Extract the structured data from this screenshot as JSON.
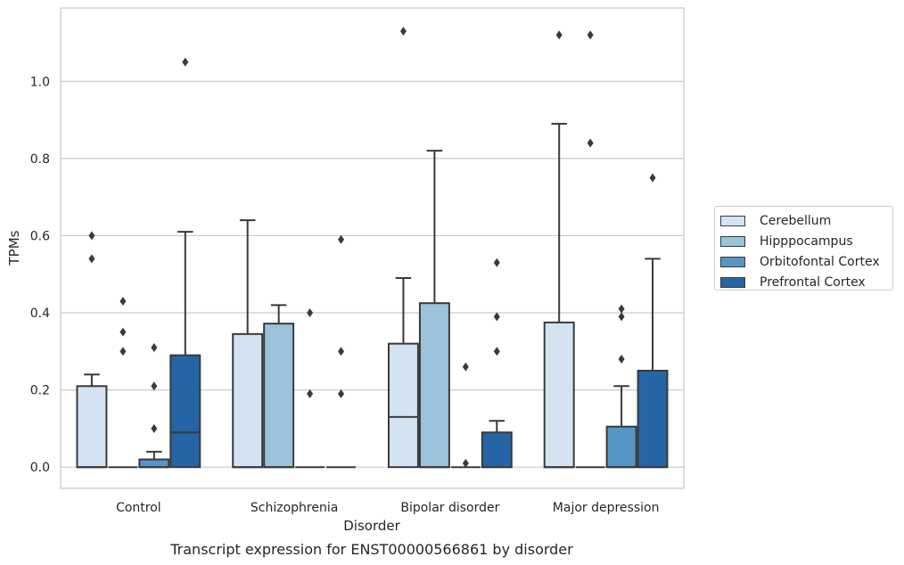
{
  "chart_data": {
    "type": "box",
    "title": "Transcript expression for ENST00000566861 by disorder",
    "xlabel": "Disorder",
    "ylabel": "TPMs",
    "ylim": [
      -0.055,
      1.19
    ],
    "yticks": [
      "0.0",
      "0.2",
      "0.4",
      "0.6",
      "0.8",
      "1.0"
    ],
    "grid": "horizontal",
    "legend_position": "right",
    "categories": [
      "Control",
      "Schizophrenia",
      "Bipolar disorder",
      "Major depression"
    ],
    "series": [
      {
        "name": "Cerebellum",
        "color": "#d4e3f1",
        "boxes": [
          {
            "q1": 0.0,
            "median": 0.0,
            "q3": 0.21,
            "whisker_low": 0.0,
            "whisker_high": 0.24,
            "outliers": [
              0.54,
              0.6
            ]
          },
          {
            "q1": 0.0,
            "median": 0.0,
            "q3": 0.345,
            "whisker_low": 0.0,
            "whisker_high": 0.64,
            "outliers": []
          },
          {
            "q1": 0.0,
            "median": 0.13,
            "q3": 0.32,
            "whisker_low": 0.0,
            "whisker_high": 0.49,
            "outliers": [
              1.13
            ]
          },
          {
            "q1": 0.0,
            "median": 0.0,
            "q3": 0.375,
            "whisker_low": 0.0,
            "whisker_high": 0.89,
            "outliers": [
              1.12
            ]
          }
        ]
      },
      {
        "name": "Hipppocampus",
        "color": "#9ac2db",
        "boxes": [
          {
            "q1": 0.0,
            "median": 0.0,
            "q3": 0.0,
            "whisker_low": 0.0,
            "whisker_high": 0.0,
            "outliers": [
              0.3,
              0.35,
              0.43
            ]
          },
          {
            "q1": 0.0,
            "median": 0.0,
            "q3": 0.372,
            "whisker_low": 0.0,
            "whisker_high": 0.42,
            "outliers": []
          },
          {
            "q1": 0.0,
            "median": 0.0,
            "q3": 0.425,
            "whisker_low": 0.0,
            "whisker_high": 0.82,
            "outliers": []
          },
          {
            "q1": 0.0,
            "median": 0.0,
            "q3": 0.0,
            "whisker_low": 0.0,
            "whisker_high": 0.0,
            "outliers": [
              0.84,
              1.12
            ]
          }
        ]
      },
      {
        "name": "Orbitofontal Cortex",
        "color": "#5596c6",
        "boxes": [
          {
            "q1": 0.0,
            "median": 0.0,
            "q3": 0.02,
            "whisker_low": 0.0,
            "whisker_high": 0.04,
            "outliers": [
              0.1,
              0.21,
              0.31
            ]
          },
          {
            "q1": 0.0,
            "median": 0.0,
            "q3": 0.0,
            "whisker_low": 0.0,
            "whisker_high": 0.0,
            "outliers": [
              0.19,
              0.4
            ]
          },
          {
            "q1": 0.0,
            "median": 0.0,
            "q3": 0.0,
            "whisker_low": 0.0,
            "whisker_high": 0.0,
            "outliers": [
              0.01,
              0.26
            ]
          },
          {
            "q1": 0.0,
            "median": 0.0,
            "q3": 0.105,
            "whisker_low": 0.0,
            "whisker_high": 0.21,
            "outliers": [
              0.28,
              0.39,
              0.41
            ]
          }
        ]
      },
      {
        "name": "Prefrontal Cortex",
        "color": "#2565a6",
        "boxes": [
          {
            "q1": 0.0,
            "median": 0.09,
            "q3": 0.29,
            "whisker_low": 0.0,
            "whisker_high": 0.61,
            "outliers": [
              1.05
            ]
          },
          {
            "q1": 0.0,
            "median": 0.0,
            "q3": 0.0,
            "whisker_low": 0.0,
            "whisker_high": 0.0,
            "outliers": [
              0.19,
              0.3,
              0.59
            ]
          },
          {
            "q1": 0.0,
            "median": 0.0,
            "q3": 0.09,
            "whisker_low": 0.0,
            "whisker_high": 0.12,
            "outliers": [
              0.3,
              0.39,
              0.53
            ]
          },
          {
            "q1": 0.0,
            "median": 0.0,
            "q3": 0.25,
            "whisker_low": 0.0,
            "whisker_high": 0.54,
            "outliers": [
              0.75
            ]
          }
        ]
      }
    ]
  }
}
